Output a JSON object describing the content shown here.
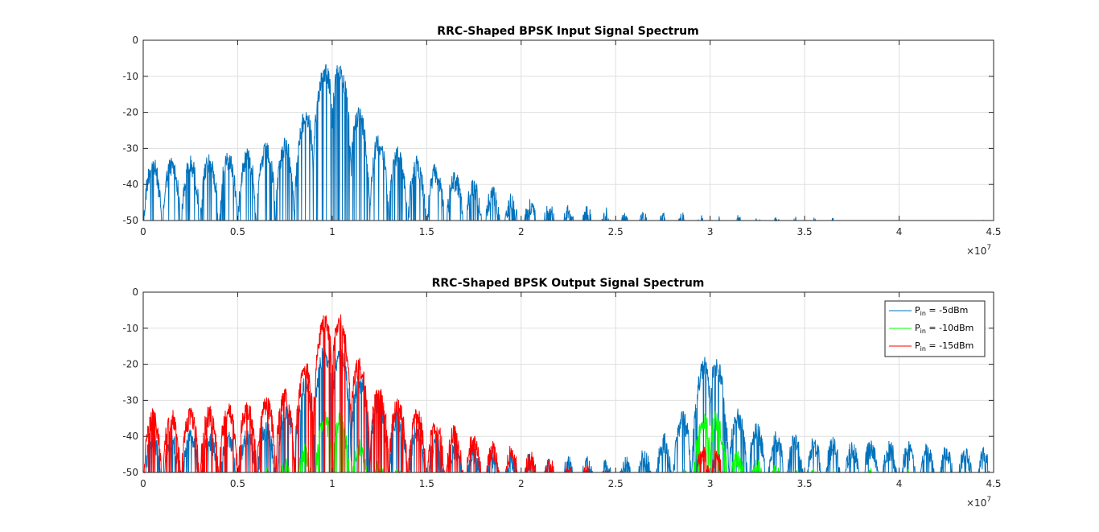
{
  "colors": {
    "input_series": "#0072BD",
    "pin_minus5": "#0072BD",
    "pin_minus10": "#00FF00",
    "pin_minus15": "#FF0000",
    "grid": "#DFDFDF",
    "axes": "#262626"
  },
  "chart_data": [
    {
      "type": "line",
      "title": "RRC-Shaped BPSK Input Signal Spectrum",
      "xlabel": "",
      "ylabel": "",
      "xlim": [
        0,
        45000000
      ],
      "ylim": [
        -50,
        0
      ],
      "grid": true,
      "x_exponent_label": "×10",
      "x_exponent_power": "7",
      "x_ticks": [
        0,
        5000000,
        10000000,
        15000000,
        20000000,
        25000000,
        30000000,
        35000000,
        40000000,
        45000000
      ],
      "x_tick_labels": [
        "0",
        "0.5",
        "1",
        "1.5",
        "2",
        "2.5",
        "3",
        "3.5",
        "4",
        "4.5"
      ],
      "y_ticks": [
        0,
        -10,
        -20,
        -30,
        -40,
        -50
      ],
      "y_tick_labels": [
        "0",
        "-10",
        "-20",
        "-30",
        "-40",
        "-50"
      ],
      "series": [
        {
          "color_key": "input_series",
          "carrier_hz": 10000000,
          "peak_db": 0,
          "lobe_spacing_hz": 1000000,
          "floor_db": -50,
          "envelope": [
            [
              0,
              -32
            ],
            [
              2000000,
              -32
            ],
            [
              4000000,
              -31
            ],
            [
              6000000,
              -29
            ],
            [
              8000000,
              -26
            ],
            [
              9000000,
              -13
            ],
            [
              10000000,
              0
            ],
            [
              11000000,
              -13
            ],
            [
              12000000,
              -24
            ],
            [
              14000000,
              -31
            ],
            [
              16000000,
              -35
            ],
            [
              18000000,
              -39
            ],
            [
              20000000,
              -43
            ],
            [
              22000000,
              -45
            ],
            [
              24000000,
              -46
            ],
            [
              26000000,
              -47
            ],
            [
              28000000,
              -47.5
            ],
            [
              30000000,
              -48
            ],
            [
              35000000,
              -49
            ],
            [
              40000000,
              -49.8
            ]
          ]
        }
      ]
    },
    {
      "type": "line",
      "title": "RRC-Shaped BPSK Output Signal Spectrum",
      "xlabel": "",
      "ylabel": "",
      "xlim": [
        0,
        45000000
      ],
      "ylim": [
        -50,
        0
      ],
      "grid": true,
      "legend_position": "top-right",
      "x_exponent_label": "×10",
      "x_exponent_power": "7",
      "x_ticks": [
        0,
        5000000,
        10000000,
        15000000,
        20000000,
        25000000,
        30000000,
        35000000,
        40000000,
        45000000
      ],
      "x_tick_labels": [
        "0",
        "0.5",
        "1",
        "1.5",
        "2",
        "2.5",
        "3",
        "3.5",
        "4",
        "4.5"
      ],
      "y_ticks": [
        0,
        -10,
        -20,
        -30,
        -40,
        -50
      ],
      "y_tick_labels": [
        "0",
        "-10",
        "-20",
        "-30",
        "-40",
        "-50"
      ],
      "legend": [
        {
          "base": "P",
          "sub": "in",
          "rest": " = -5dBm",
          "color_key": "pin_minus5"
        },
        {
          "base": "P",
          "sub": "in",
          "rest": " = -10dBm",
          "color_key": "pin_minus10"
        },
        {
          "base": "P",
          "sub": "in",
          "rest": " = -15dBm",
          "color_key": "pin_minus15"
        }
      ],
      "series": [
        {
          "color_key": "pin_minus5",
          "name": "Pin = -5dBm",
          "carrier_hz": 10000000,
          "third_harmonic_hz": 30000000,
          "envelope": [
            [
              0,
              -38
            ],
            [
              4000000,
              -38
            ],
            [
              7000000,
              -35
            ],
            [
              9000000,
              -20
            ],
            [
              10000000,
              -10
            ],
            [
              11000000,
              -20
            ],
            [
              13000000,
              -31
            ],
            [
              15000000,
              -38
            ],
            [
              18000000,
              -43
            ],
            [
              22000000,
              -45
            ],
            [
              25000000,
              -46
            ],
            [
              27000000,
              -42
            ],
            [
              29000000,
              -30
            ],
            [
              30000000,
              -9
            ],
            [
              31000000,
              -30
            ],
            [
              33000000,
              -38
            ],
            [
              36000000,
              -40
            ],
            [
              40000000,
              -41
            ],
            [
              45000000,
              -43
            ]
          ]
        },
        {
          "color_key": "pin_minus10",
          "name": "Pin = -10dBm",
          "carrier_hz": 10000000,
          "envelope": [
            [
              0,
              -50
            ],
            [
              6000000,
              -50
            ],
            [
              7500000,
              -46
            ],
            [
              9000000,
              -40
            ],
            [
              9800000,
              -30
            ],
            [
              10000000,
              -29
            ],
            [
              10200000,
              -30
            ],
            [
              11000000,
              -38
            ],
            [
              12500000,
              -46
            ],
            [
              14000000,
              -50
            ],
            [
              28500000,
              -50
            ],
            [
              29500000,
              -35
            ],
            [
              30000000,
              -24
            ],
            [
              30500000,
              -35
            ],
            [
              31500000,
              -44
            ],
            [
              33000000,
              -47
            ],
            [
              35000000,
              -48
            ],
            [
              40000000,
              -49
            ],
            [
              45000000,
              -50
            ]
          ]
        },
        {
          "color_key": "pin_minus15",
          "name": "Pin = -15dBm",
          "carrier_hz": 10000000,
          "envelope": [
            [
              0,
              -32
            ],
            [
              2000000,
              -32
            ],
            [
              4000000,
              -31
            ],
            [
              6000000,
              -29
            ],
            [
              8000000,
              -26
            ],
            [
              9000000,
              -13
            ],
            [
              10000000,
              0
            ],
            [
              11000000,
              -13
            ],
            [
              12000000,
              -24
            ],
            [
              14000000,
              -31
            ],
            [
              16000000,
              -35
            ],
            [
              18000000,
              -40
            ],
            [
              20000000,
              -43
            ],
            [
              22000000,
              -46
            ],
            [
              24000000,
              -48
            ],
            [
              26000000,
              -50
            ],
            [
              29000000,
              -50
            ],
            [
              30000000,
              -35
            ],
            [
              30800000,
              -50
            ],
            [
              45000000,
              -50
            ]
          ]
        }
      ]
    }
  ]
}
